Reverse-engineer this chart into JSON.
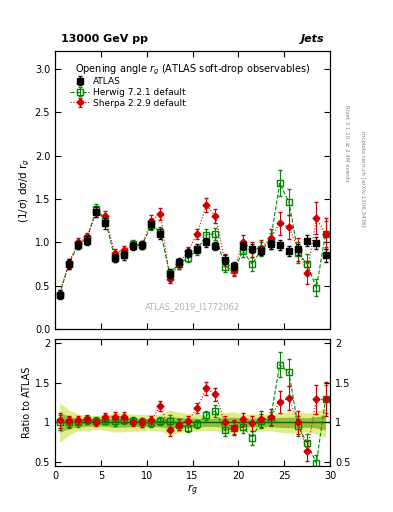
{
  "title_top": "13000 GeV pp",
  "title_right": "Jets",
  "plot_title": "Opening angle $r_g$ (ATLAS soft-drop observables)",
  "ylabel_main": "(1/σ) dσ/d r$_g$",
  "ylabel_ratio": "Ratio to ATLAS",
  "xlabel": "$r_g$",
  "watermark": "ATLAS_2019_I1772062",
  "rivet_text": "Rivet 3.1.10, ≥ 2.4M events",
  "arxiv_text": "mcplots.cern.ch [arXiv:1306.3436]",
  "ylim_main": [
    0,
    3.2
  ],
  "ylim_ratio": [
    0.45,
    2.05
  ],
  "xlim": [
    0,
    30
  ],
  "atlas_x": [
    0.5,
    1.5,
    2.5,
    3.5,
    4.5,
    5.5,
    6.5,
    7.5,
    8.5,
    9.5,
    10.5,
    11.5,
    12.5,
    13.5,
    14.5,
    15.5,
    16.5,
    17.5,
    18.5,
    19.5,
    20.5,
    21.5,
    22.5,
    23.5,
    24.5,
    25.5,
    26.5,
    27.5,
    28.5,
    29.5
  ],
  "atlas_y": [
    0.4,
    0.75,
    0.97,
    1.02,
    1.35,
    1.22,
    0.82,
    0.85,
    0.96,
    0.97,
    1.21,
    1.1,
    0.64,
    0.77,
    0.88,
    0.93,
    1.0,
    0.96,
    0.8,
    0.73,
    0.96,
    0.93,
    0.9,
    0.98,
    0.97,
    0.9,
    0.92,
    1.02,
    0.99,
    0.85
  ],
  "atlas_yerr": [
    0.05,
    0.06,
    0.05,
    0.05,
    0.06,
    0.06,
    0.05,
    0.05,
    0.05,
    0.05,
    0.06,
    0.06,
    0.05,
    0.05,
    0.05,
    0.05,
    0.05,
    0.05,
    0.05,
    0.05,
    0.05,
    0.05,
    0.05,
    0.05,
    0.06,
    0.06,
    0.06,
    0.06,
    0.07,
    0.08
  ],
  "herwig_x": [
    0.5,
    1.5,
    2.5,
    3.5,
    4.5,
    5.5,
    6.5,
    7.5,
    8.5,
    9.5,
    10.5,
    11.5,
    12.5,
    13.5,
    14.5,
    15.5,
    16.5,
    17.5,
    18.5,
    19.5,
    20.5,
    21.5,
    22.5,
    23.5,
    24.5,
    25.5,
    26.5,
    27.5,
    28.5,
    29.5
  ],
  "herwig_y": [
    0.4,
    0.75,
    0.97,
    1.05,
    1.38,
    1.25,
    0.83,
    0.88,
    0.98,
    0.97,
    1.2,
    1.12,
    0.65,
    0.75,
    0.82,
    0.91,
    1.09,
    1.1,
    0.72,
    0.68,
    0.9,
    0.75,
    0.92,
    1.02,
    1.68,
    1.47,
    0.88,
    0.75,
    0.48,
    1.1
  ],
  "herwig_yerr": [
    0.04,
    0.05,
    0.05,
    0.05,
    0.06,
    0.06,
    0.05,
    0.05,
    0.05,
    0.05,
    0.06,
    0.06,
    0.05,
    0.05,
    0.05,
    0.05,
    0.06,
    0.07,
    0.06,
    0.06,
    0.07,
    0.08,
    0.08,
    0.09,
    0.15,
    0.15,
    0.12,
    0.12,
    0.1,
    0.15
  ],
  "sherpa_x": [
    0.5,
    1.5,
    2.5,
    3.5,
    4.5,
    5.5,
    6.5,
    7.5,
    8.5,
    9.5,
    10.5,
    11.5,
    12.5,
    13.5,
    14.5,
    15.5,
    16.5,
    17.5,
    18.5,
    19.5,
    20.5,
    21.5,
    22.5,
    23.5,
    24.5,
    25.5,
    26.5,
    27.5,
    28.5,
    29.5
  ],
  "sherpa_y": [
    0.41,
    0.76,
    1.0,
    1.06,
    1.35,
    1.3,
    0.88,
    0.91,
    0.97,
    0.97,
    1.25,
    1.33,
    0.58,
    0.75,
    0.9,
    1.1,
    1.43,
    1.3,
    0.8,
    0.68,
    1.0,
    0.92,
    0.94,
    1.05,
    1.22,
    1.18,
    0.92,
    0.65,
    1.28,
    1.1
  ],
  "sherpa_yerr": [
    0.04,
    0.05,
    0.05,
    0.05,
    0.06,
    0.06,
    0.05,
    0.05,
    0.05,
    0.05,
    0.06,
    0.07,
    0.05,
    0.05,
    0.05,
    0.06,
    0.08,
    0.08,
    0.07,
    0.07,
    0.08,
    0.09,
    0.09,
    0.1,
    0.13,
    0.14,
    0.13,
    0.13,
    0.18,
    0.18
  ],
  "atlas_color": "#000000",
  "herwig_color": "#008800",
  "sherpa_color": "#cc0000",
  "herwig_label": "Herwig 7.2.1 default",
  "sherpa_label": "Sherpa 2.2.9 default",
  "atlas_label": "ATLAS",
  "ratio_band_color_inner": "#99bb33",
  "ratio_band_color_outer": "#ddee88",
  "bg_color": "#ffffff"
}
